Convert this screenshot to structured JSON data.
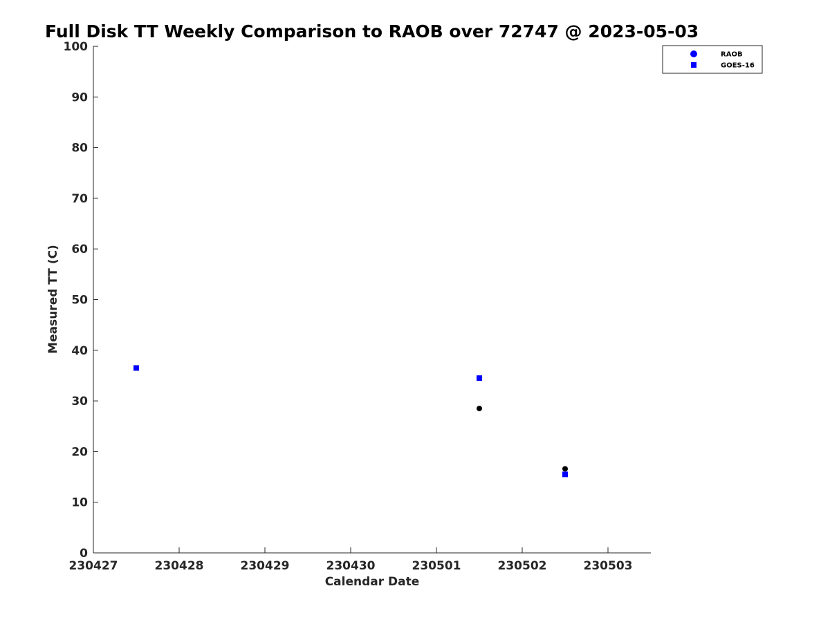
{
  "chart_data": {
    "type": "scatter",
    "title": "Full Disk TT Weekly Comparison to RAOB over 72747 @ 2023-05-03",
    "xlabel": "Calendar Date",
    "ylabel": "Measured TT (C)",
    "x_is_categorical_ticks": true,
    "x_tick_labels": [
      "230427",
      "230428",
      "230429",
      "230430",
      "230501",
      "230502",
      "230503"
    ],
    "xlim": [
      "230427",
      "230503 + 0.5 day"
    ],
    "ylim": [
      0,
      100
    ],
    "y_ticks": [
      0,
      10,
      20,
      30,
      40,
      50,
      60,
      70,
      80,
      90,
      100
    ],
    "grid": false,
    "legend_position": "top-right",
    "series": [
      {
        "name": "RAOB",
        "marker": "circle",
        "color": "#000000",
        "legend_color": "#0000ff",
        "points": [
          {
            "x": "230501 12Z",
            "day_index": 4.5,
            "y": 28.5
          },
          {
            "x": "230502 12Z",
            "day_index": 5.5,
            "y": 16.6
          }
        ]
      },
      {
        "name": "GOES-16",
        "marker": "square",
        "color": "#0000ff",
        "points": [
          {
            "x": "230427 12Z",
            "day_index": 0.5,
            "y": 36.5
          },
          {
            "x": "230501 12Z",
            "day_index": 4.5,
            "y": 34.5
          },
          {
            "x": "230502 12Z",
            "day_index": 5.5,
            "y": 15.5
          }
        ]
      }
    ]
  }
}
